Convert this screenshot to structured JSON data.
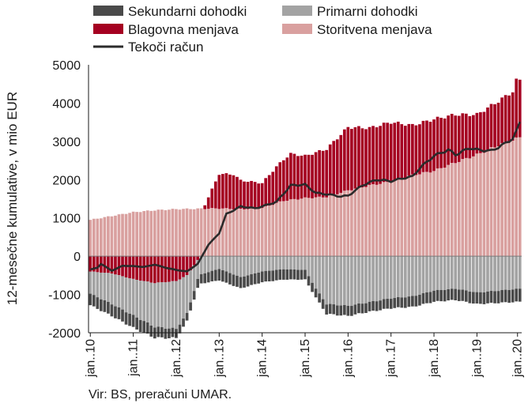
{
  "chart_data": {
    "type": "bar",
    "ylabel": "12-mesečne kumulative, v mio EUR",
    "ylim": [
      -2000,
      5000
    ],
    "yticks": [
      -2000,
      -1000,
      0,
      1000,
      2000,
      3000,
      4000,
      5000
    ],
    "xtick_labels": [
      "jan..10",
      "jan..11",
      "jan..12",
      "jan..13",
      "jan..14",
      "jan..15",
      "jan..16",
      "jan..17",
      "jan..18",
      "jan..19",
      "jan..20"
    ],
    "grid": false,
    "legend_position": "top",
    "source": "Vir: BS, preračuni UMAR.",
    "period": "monthly, January 2010 – January 2020",
    "series": [
      {
        "name": "Sekundarni dohodki",
        "kind": "bar",
        "color": "#4a4a4a",
        "anchors": [
          [
            0,
            -300
          ],
          [
            12,
            -320
          ],
          [
            24,
            -240
          ],
          [
            27,
            -200
          ],
          [
            36,
            -300
          ],
          [
            48,
            -280
          ],
          [
            54,
            -270
          ],
          [
            60,
            -250
          ],
          [
            63,
            -230
          ],
          [
            66,
            -260
          ],
          [
            72,
            -260
          ],
          [
            78,
            -250
          ],
          [
            84,
            -260
          ],
          [
            96,
            -290
          ],
          [
            108,
            -300
          ],
          [
            120,
            -340
          ]
        ]
      },
      {
        "name": "Primarni dohodki",
        "kind": "bar",
        "color": "#a3a3a3",
        "anchors": [
          [
            0,
            -580
          ],
          [
            6,
            -800
          ],
          [
            12,
            -950
          ],
          [
            18,
            -1150
          ],
          [
            24,
            -1250
          ],
          [
            27,
            -1000
          ],
          [
            30,
            -500
          ],
          [
            36,
            -330
          ],
          [
            42,
            -550
          ],
          [
            48,
            -400
          ],
          [
            54,
            -340
          ],
          [
            60,
            -360
          ],
          [
            63,
            -850
          ],
          [
            66,
            -1250
          ],
          [
            72,
            -1300
          ],
          [
            78,
            -1200
          ],
          [
            84,
            -1100
          ],
          [
            90,
            -1050
          ],
          [
            96,
            -900
          ],
          [
            102,
            -850
          ],
          [
            108,
            -950
          ],
          [
            114,
            -900
          ],
          [
            120,
            -850
          ]
        ]
      },
      {
        "name": "Blagovna menjava",
        "kind": "bar",
        "color": "#a50021",
        "anchors": [
          [
            0,
            -400
          ],
          [
            6,
            -450
          ],
          [
            12,
            -600
          ],
          [
            18,
            -700
          ],
          [
            24,
            -650
          ],
          [
            27,
            -500
          ],
          [
            30,
            -100
          ],
          [
            32,
            100
          ],
          [
            34,
            500
          ],
          [
            36,
            900
          ],
          [
            40,
            900
          ],
          [
            42,
            750
          ],
          [
            48,
            650
          ],
          [
            52,
            950
          ],
          [
            56,
            1200
          ],
          [
            60,
            1100
          ],
          [
            66,
            1250
          ],
          [
            72,
            1650
          ],
          [
            78,
            1500
          ],
          [
            84,
            1550
          ],
          [
            90,
            1300
          ],
          [
            96,
            1350
          ],
          [
            102,
            1250
          ],
          [
            108,
            1050
          ],
          [
            114,
            1150
          ],
          [
            118,
            1270
          ],
          [
            119,
            1520
          ],
          [
            120,
            1500
          ]
        ]
      },
      {
        "name": "Storitvena menjava",
        "kind": "bar",
        "color": "#d9a09f",
        "anchors": [
          [
            0,
            950
          ],
          [
            6,
            1050
          ],
          [
            12,
            1150
          ],
          [
            18,
            1200
          ],
          [
            24,
            1230
          ],
          [
            30,
            1240
          ],
          [
            36,
            1250
          ],
          [
            42,
            1230
          ],
          [
            48,
            1260
          ],
          [
            54,
            1450
          ],
          [
            60,
            1520
          ],
          [
            66,
            1550
          ],
          [
            72,
            1720
          ],
          [
            78,
            1850
          ],
          [
            84,
            1950
          ],
          [
            90,
            2120
          ],
          [
            96,
            2230
          ],
          [
            102,
            2450
          ],
          [
            108,
            2650
          ],
          [
            114,
            2900
          ],
          [
            120,
            3100
          ]
        ]
      },
      {
        "name": "Tekoči račun",
        "kind": "line",
        "color": "#2b2b2b",
        "anchors": [
          [
            0,
            -350
          ],
          [
            2,
            -300
          ],
          [
            3,
            -200
          ],
          [
            6,
            -380
          ],
          [
            9,
            -250
          ],
          [
            12,
            -260
          ],
          [
            15,
            -280
          ],
          [
            18,
            -220
          ],
          [
            21,
            -300
          ],
          [
            24,
            -360
          ],
          [
            27,
            -400
          ],
          [
            30,
            -200
          ],
          [
            33,
            300
          ],
          [
            36,
            600
          ],
          [
            38,
            1100
          ],
          [
            42,
            1300
          ],
          [
            46,
            1250
          ],
          [
            48,
            1300
          ],
          [
            52,
            1420
          ],
          [
            56,
            1850
          ],
          [
            60,
            1870
          ],
          [
            63,
            1650
          ],
          [
            66,
            1620
          ],
          [
            70,
            1560
          ],
          [
            72,
            1580
          ],
          [
            76,
            1850
          ],
          [
            80,
            2000
          ],
          [
            84,
            1960
          ],
          [
            88,
            2050
          ],
          [
            90,
            2080
          ],
          [
            92,
            2300
          ],
          [
            96,
            2620
          ],
          [
            100,
            2780
          ],
          [
            102,
            2650
          ],
          [
            106,
            2830
          ],
          [
            108,
            2780
          ],
          [
            112,
            2750
          ],
          [
            116,
            2950
          ],
          [
            118,
            3080
          ],
          [
            119,
            3250
          ],
          [
            120,
            3500
          ]
        ]
      }
    ]
  }
}
